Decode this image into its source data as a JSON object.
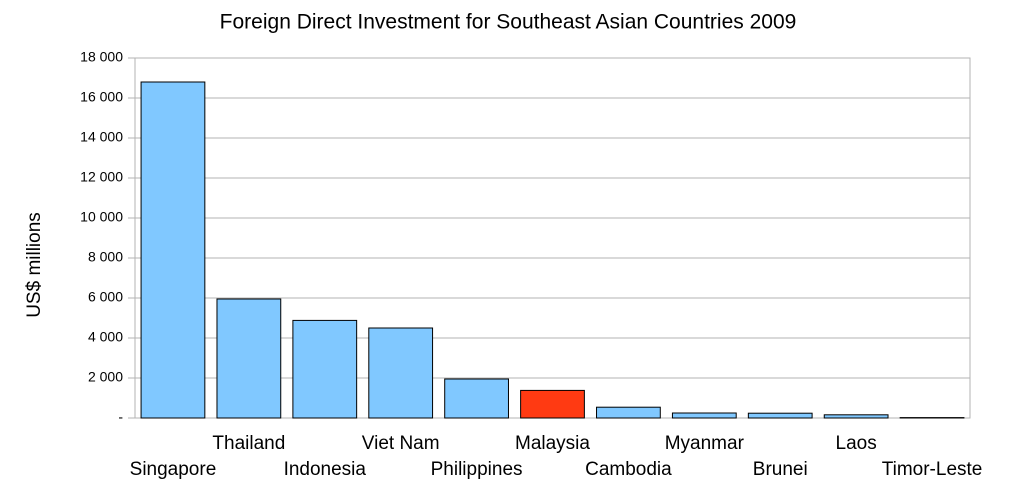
{
  "chart_data": {
    "type": "bar",
    "title": "Foreign Direct Investment for Southeast Asian Countries 2009",
    "y_label": "US$ millions",
    "categories": [
      "Singapore",
      "Thailand",
      "Indonesia",
      "Viet Nam",
      "Philippines",
      "Malaysia",
      "Cambodia",
      "Myanmar",
      "Brunei",
      "Laos",
      "Timor-Leste"
    ],
    "values": [
      16800,
      5950,
      4880,
      4500,
      1950,
      1380,
      540,
      250,
      240,
      160,
      20
    ],
    "colors": [
      "#80c8ff",
      "#80c8ff",
      "#80c8ff",
      "#80c8ff",
      "#80c8ff",
      "#ff3a12",
      "#80c8ff",
      "#80c8ff",
      "#80c8ff",
      "#80c8ff",
      "#80c8ff"
    ],
    "ylim": [
      0,
      18000
    ],
    "yticks": [
      {
        "value": 0,
        "label": "-"
      },
      {
        "value": 2000,
        "label": "2 000"
      },
      {
        "value": 4000,
        "label": "4 000"
      },
      {
        "value": 6000,
        "label": "6 000"
      },
      {
        "value": 8000,
        "label": "8 000"
      },
      {
        "value": 10000,
        "label": "10 000"
      },
      {
        "value": 12000,
        "label": "12 000"
      },
      {
        "value": 14000,
        "label": "14 000"
      },
      {
        "value": 16000,
        "label": "16 000"
      },
      {
        "value": 18000,
        "label": "18 000"
      }
    ],
    "grid": true
  }
}
